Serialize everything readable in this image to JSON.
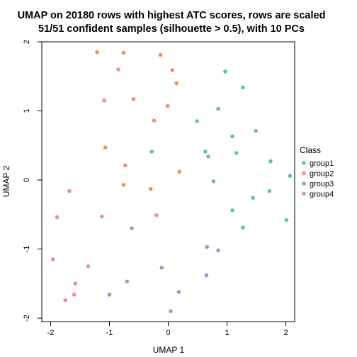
{
  "chart_data": {
    "type": "scatter",
    "title": "UMAP on 20180 rows with highest ATC scores, rows are scaled",
    "subtitle": "51/51 confident samples (silhouette > 0.5), with 10 PCs",
    "xlabel": "UMAP 1",
    "ylabel": "UMAP 2",
    "xlim": [
      -2.15,
      2.15
    ],
    "ylim": [
      -2.05,
      2.0
    ],
    "xticks": [
      -2,
      -1,
      0,
      1,
      2
    ],
    "yticks": [
      -2,
      -1,
      0,
      1,
      2
    ],
    "xtick_labels": [
      "-2",
      "-1",
      "0",
      "1",
      "2"
    ],
    "ytick_labels": [
      "-2",
      "-1",
      "0",
      "1",
      "2"
    ],
    "grid": false,
    "legend": {
      "title": "Class",
      "position": "right"
    },
    "series": [
      {
        "name": "group1",
        "color": "#66C2A5",
        "points": [
          [
            0.97,
            1.57
          ],
          [
            1.27,
            1.34
          ],
          [
            0.85,
            1.03
          ],
          [
            0.49,
            0.85
          ],
          [
            1.49,
            0.71
          ],
          [
            1.09,
            0.63
          ],
          [
            -0.28,
            0.41
          ],
          [
            0.63,
            0.41
          ],
          [
            0.68,
            0.34
          ],
          [
            1.16,
            0.39
          ],
          [
            1.74,
            0.27
          ],
          [
            2.07,
            0.06
          ],
          [
            0.77,
            -0.02
          ],
          [
            1.72,
            -0.16
          ],
          [
            1.44,
            -0.26
          ],
          [
            1.09,
            -0.44
          ],
          [
            1.27,
            -0.69
          ],
          [
            2.01,
            -0.58
          ]
        ]
      },
      {
        "name": "group2",
        "color": "#FC8D62",
        "points": [
          [
            -1.21,
            1.85
          ],
          [
            -0.76,
            1.84
          ],
          [
            -0.13,
            1.81
          ],
          [
            0.07,
            1.59
          ],
          [
            0.14,
            1.4
          ],
          [
            -0.59,
            1.17
          ],
          [
            -0.01,
            1.07
          ],
          [
            -0.24,
            0.86
          ],
          [
            -1.07,
            0.47
          ],
          [
            -0.73,
            0.21
          ],
          [
            0.19,
            0.12
          ],
          [
            -0.76,
            -0.07
          ],
          [
            -0.3,
            -0.13
          ]
        ]
      },
      {
        "name": "group3",
        "color": "#8DA0CB",
        "points": [
          [
            -0.62,
            -0.7
          ],
          [
            0.66,
            -0.97
          ],
          [
            0.85,
            -1.02
          ],
          [
            -0.11,
            -1.27
          ],
          [
            0.65,
            -1.38
          ],
          [
            -0.7,
            -1.47
          ],
          [
            0.18,
            -1.62
          ],
          [
            -1.0,
            -1.66
          ],
          [
            0.04,
            -1.9
          ]
        ]
      },
      {
        "name": "group4",
        "color": "#E78AC3",
        "points": [
          [
            -0.85,
            1.6
          ],
          [
            -1.09,
            1.15
          ],
          [
            -1.68,
            -0.16
          ],
          [
            -1.89,
            -0.54
          ],
          [
            -1.13,
            -0.53
          ],
          [
            -0.2,
            -0.51
          ],
          [
            -1.96,
            -1.15
          ],
          [
            -1.36,
            -1.25
          ],
          [
            -1.58,
            -1.5
          ],
          [
            -1.6,
            -1.66
          ],
          [
            -1.75,
            -1.74
          ]
        ]
      }
    ]
  }
}
